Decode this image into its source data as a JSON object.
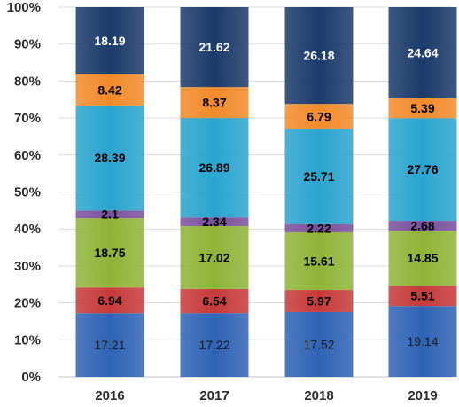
{
  "chart_data": {
    "type": "bar",
    "stacked": true,
    "percent_stacked": true,
    "title": "",
    "xlabel": "",
    "ylabel": "",
    "ylim": [
      0,
      100
    ],
    "y_tick_format": "{v}%",
    "y_ticks": [
      0,
      10,
      20,
      30,
      40,
      50,
      60,
      70,
      80,
      90,
      100
    ],
    "grid": true,
    "legend": "none",
    "categories": [
      "2016",
      "2017",
      "2018",
      "2019"
    ],
    "series": [
      {
        "color": "#2f63b5",
        "label_color": "#1a1a1a",
        "values": [
          17.21,
          17.22,
          17.52,
          19.14
        ]
      },
      {
        "color": "#c73a3a",
        "label_color": "#000000",
        "values": [
          6.94,
          6.54,
          5.97,
          5.51
        ]
      },
      {
        "color": "#8fb437",
        "label_color": "#000000",
        "values": [
          18.75,
          17.02,
          15.61,
          14.85
        ]
      },
      {
        "color": "#7a4f9c",
        "label_color": "#000000",
        "values": [
          2.1,
          2.34,
          2.22,
          2.68
        ]
      },
      {
        "color": "#2aa4cf",
        "label_color": "#000000",
        "values": [
          28.39,
          26.89,
          25.71,
          27.76
        ]
      },
      {
        "color": "#f28a2a",
        "label_color": "#000000",
        "values": [
          8.42,
          8.37,
          6.79,
          5.39
        ]
      },
      {
        "color": "#1b3a6b",
        "label_color": "#ffffff",
        "values": [
          18.19,
          21.62,
          26.18,
          24.64
        ]
      }
    ]
  }
}
